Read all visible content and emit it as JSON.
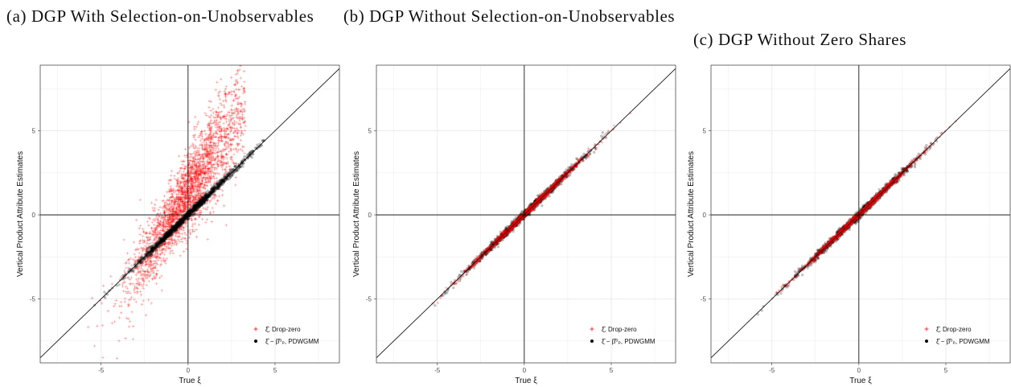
{
  "captions": {
    "a": "(a) DGP With Selection-on-Unobservables",
    "b": "(b) DGP Without Selection-on-Unobservables",
    "c": "(c) DGP Without Zero Shares"
  },
  "colors": {
    "drop_zero": "#ff0000",
    "pdwgmm": "#000000",
    "grid": "#ebebeb",
    "panel_border": "#333333"
  },
  "chart_data": [
    {
      "type": "scatter",
      "title": "(a) DGP With Selection-on-Unobservables",
      "xlabel": "True ξ",
      "ylabel": "Vertical Product Attribute Estimates",
      "xlim": [
        -8.5,
        8.7
      ],
      "ylim": [
        -8.8,
        8.9
      ],
      "xticks": [
        "-5",
        "0",
        "5"
      ],
      "yticks": [
        "5",
        "0",
        "-5"
      ],
      "grid": true,
      "reference_lines": [
        "x = 0",
        "y = 0",
        "y = x"
      ],
      "legend_position": "bottom-right",
      "series": [
        {
          "name": "ξ̂, Drop-zero",
          "marker": "plus",
          "color": "#ff0000",
          "x_range": [
            -6.6,
            3.3
          ],
          "slope": 1.6,
          "intercept": 1.3,
          "spread": 1.55
        },
        {
          "name": "ξ̂ − β̂⁰ₚ, PDWGMM",
          "marker": "dot",
          "color": "#000000",
          "x_range": [
            -7.8,
            4.4
          ],
          "slope": 1.0,
          "intercept": 0.0,
          "spread": 0.12
        }
      ]
    },
    {
      "type": "scatter",
      "title": "(b) DGP Without Selection-on-Unobservables",
      "xlabel": "True ξ",
      "ylabel": "Vertical Product Attribute Estimates",
      "xlim": [
        -8.5,
        8.7
      ],
      "ylim": [
        -8.8,
        8.9
      ],
      "xticks": [
        "-5",
        "0",
        "5"
      ],
      "yticks": [
        "5",
        "0",
        "-5"
      ],
      "grid": true,
      "reference_lines": [
        "x = 0",
        "y = 0",
        "y = x"
      ],
      "legend_position": "bottom-right",
      "series": [
        {
          "name": "ξ̂, Drop-zero",
          "marker": "plus",
          "color": "#ff0000",
          "x_range": [
            -6.6,
            6.2
          ],
          "slope": 1.0,
          "intercept": 0.0,
          "spread": 0.09
        },
        {
          "name": "ξ̂ − β̂⁰ₚ, PDWGMM",
          "marker": "dot",
          "color": "#000000",
          "x_range": [
            -7.2,
            6.6
          ],
          "slope": 1.0,
          "intercept": 0.0,
          "spread": 0.12
        }
      ]
    },
    {
      "type": "scatter",
      "title": "(c) DGP Without Zero Shares",
      "xlabel": "True ξ",
      "ylabel": "Vertical Product Attribute Estimates",
      "xlim": [
        -8.5,
        8.7
      ],
      "ylim": [
        -8.8,
        8.9
      ],
      "xticks": [
        "-5",
        "0",
        "5"
      ],
      "yticks": [
        "5",
        "0",
        "-5"
      ],
      "grid": true,
      "reference_lines": [
        "x = 0",
        "y = 0",
        "y = x"
      ],
      "legend_position": "bottom-right",
      "series": [
        {
          "name": "ξ̂, Drop-zero",
          "marker": "plus",
          "color": "#ff0000",
          "x_range": [
            -6.6,
            5.6
          ],
          "slope": 1.0,
          "intercept": 0.0,
          "spread": 0.08
        },
        {
          "name": "ξ̂ − β̂⁰ₚ, PDWGMM",
          "marker": "dot",
          "color": "#000000",
          "x_range": [
            -7.4,
            6.2
          ],
          "slope": 1.0,
          "intercept": 0.0,
          "spread": 0.12
        }
      ]
    }
  ]
}
